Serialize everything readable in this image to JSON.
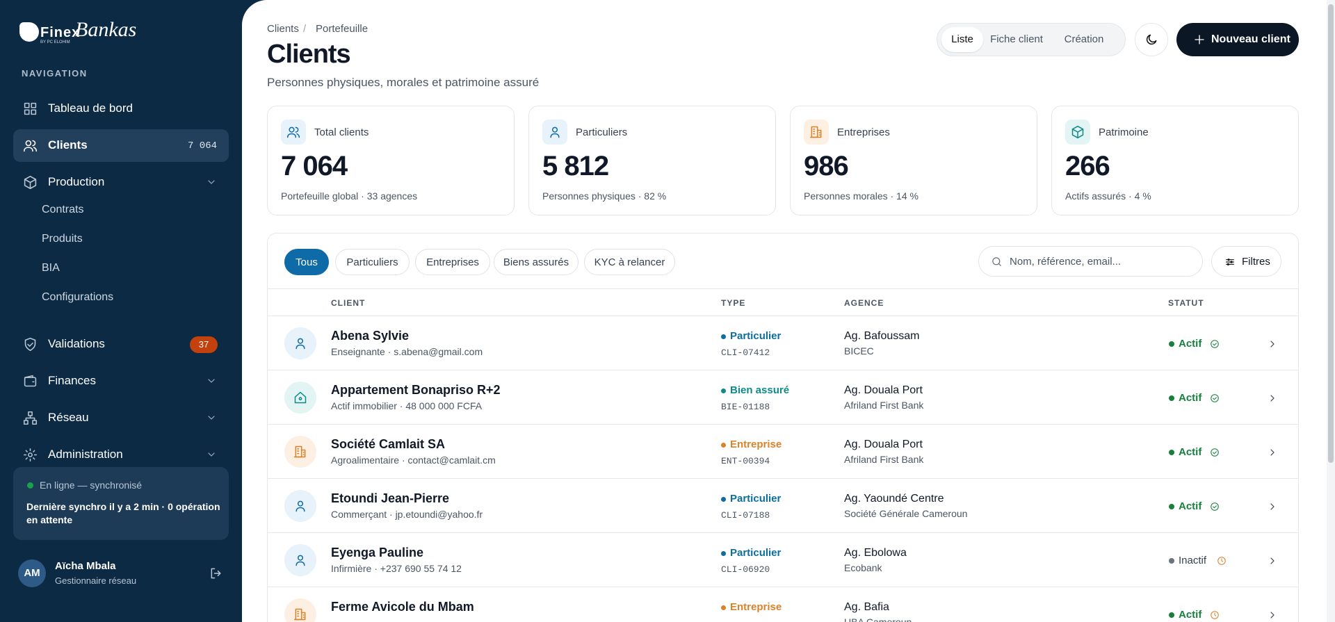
{
  "brand": {
    "name1": "Finex",
    "name2": "Bankas",
    "tagline": "BY PC ELOHIM"
  },
  "sidebar": {
    "section": "NAVIGATION",
    "items": [
      {
        "label": "Tableau de bord",
        "icon": "grid"
      },
      {
        "label": "Clients",
        "icon": "users",
        "badge": "7 064",
        "active": true
      },
      {
        "label": "Production",
        "icon": "box",
        "expand": true,
        "children": [
          "Contrats",
          "Produits",
          "BIA",
          "Configurations"
        ]
      },
      {
        "label": "Validations",
        "icon": "shield",
        "badge": "37"
      },
      {
        "label": "Finances",
        "icon": "wallet",
        "expand": true
      },
      {
        "label": "Réseau",
        "icon": "net",
        "expand": true
      },
      {
        "label": "Administration",
        "icon": "gear",
        "expand": true
      }
    ],
    "status": {
      "title": "En ligne — synchronisé",
      "text": "Dernière synchro il y a 2 min · 0 opération en attente"
    },
    "user": {
      "initials": "AM",
      "name": "Aïcha Mbala",
      "role": "Gestionnaire réseau"
    }
  },
  "header": {
    "breadcrumb": [
      "Clients",
      "Portefeuille"
    ],
    "separator": "/",
    "title": "Clients",
    "subtitle": "Personnes physiques, morales et patrimoine assuré",
    "tabs": [
      "Liste",
      "Fiche client",
      "Création"
    ],
    "new_button": "Nouveau client"
  },
  "stats": [
    {
      "label": "Total clients",
      "value": "7 064",
      "note": "Portefeuille global · 33 agences",
      "icon": "users",
      "tone": "blue"
    },
    {
      "label": "Particuliers",
      "value": "5 812",
      "note": "Personnes physiques · 82 %",
      "icon": "user",
      "tone": "blue"
    },
    {
      "label": "Entreprises",
      "value": "986",
      "note": "Personnes morales · 14 %",
      "icon": "building",
      "tone": "orange"
    },
    {
      "label": "Patrimoine",
      "value": "266",
      "note": "Actifs assurés · 4 %",
      "icon": "box",
      "tone": "teal"
    }
  ],
  "filters": {
    "chips": [
      "Tous",
      "Particuliers",
      "Entreprises",
      "Biens assurés",
      "KYC à relancer"
    ],
    "search_placeholder": "Nom, référence, email...",
    "button": "Filtres"
  },
  "table": {
    "headers": [
      "CLIENT",
      "TYPE",
      "AGENCE",
      "STATUT"
    ],
    "rows": [
      {
        "name": "Abena Sylvie",
        "sub": "Enseignante · s.abena@gmail.com",
        "type": "Particulier",
        "code": "CLI-07412",
        "agency": "Ag. Bafoussam",
        "bank": "BICEC",
        "status": "Actif",
        "check": "ok"
      },
      {
        "name": "Appartement Bonapriso R+2",
        "sub": "Actif immobilier · 48 000 000 FCFA",
        "type": "Bien assuré",
        "code": "BIE-01188",
        "agency": "Ag. Douala Port",
        "bank": "Afriland First Bank",
        "status": "Actif",
        "check": "ok"
      },
      {
        "name": "Société Camlait SA",
        "sub": "Agroalimentaire · contact@camlait.cm",
        "type": "Entreprise",
        "code": "ENT-00394",
        "agency": "Ag. Douala Port",
        "bank": "Afriland First Bank",
        "status": "Actif",
        "check": "ok"
      },
      {
        "name": "Etoundi Jean-Pierre",
        "sub": "Commerçant · jp.etoundi@yahoo.fr",
        "type": "Particulier",
        "code": "CLI-07188",
        "agency": "Ag. Yaoundé Centre",
        "bank": "Société Générale Cameroun",
        "status": "Actif",
        "check": "ok"
      },
      {
        "name": "Eyenga Pauline",
        "sub": "Infirmière · +237 690 55 74 12",
        "type": "Particulier",
        "code": "CLI-06920",
        "agency": "Ag. Ebolowa",
        "bank": "Ecobank",
        "status": "Inactif",
        "check": "wait"
      },
      {
        "name": "Ferme Avicole du Mbam",
        "type": "Entreprise",
        "agency": "Ag. Bafia",
        "bank": "UBA Cameroun",
        "status": "Actif",
        "check": "wait"
      }
    ]
  }
}
